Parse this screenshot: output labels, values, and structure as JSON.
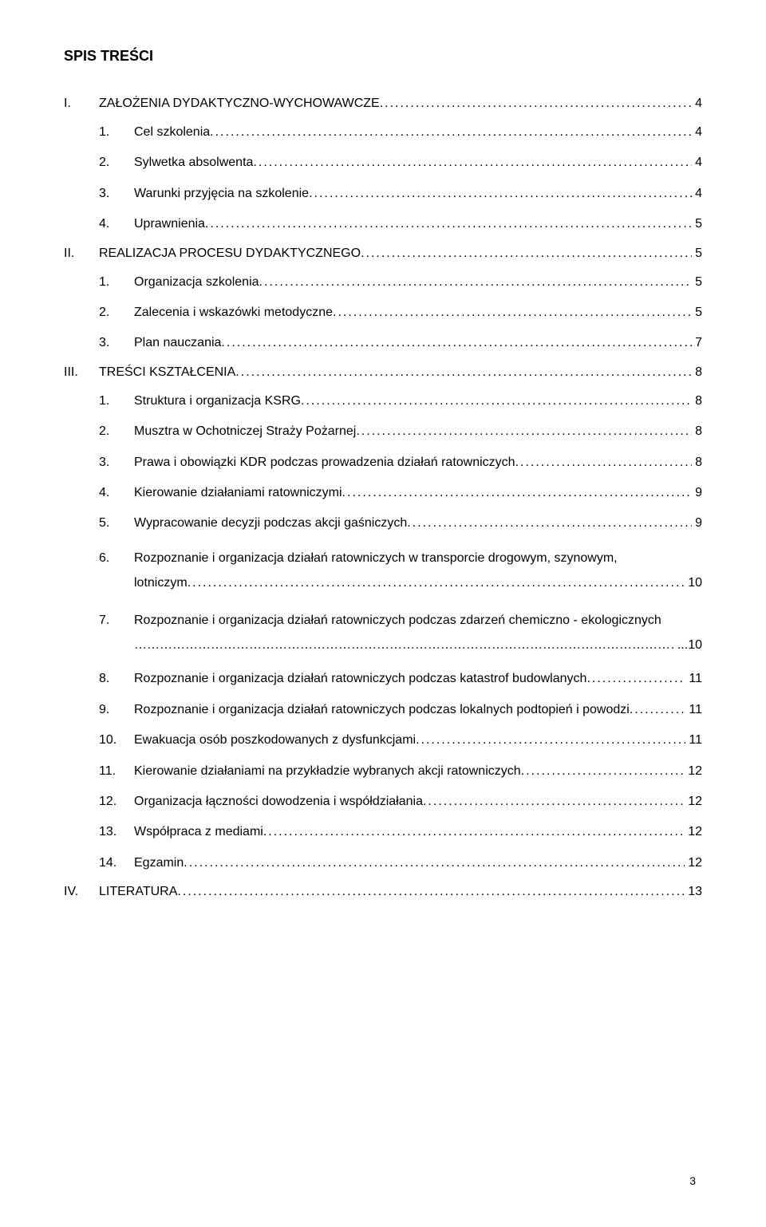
{
  "title": "SPIS TREŚCI",
  "page_number": "3",
  "dots_fill": "..................................................................................................................................................................................................",
  "ellipsis_fill": "……………………………………………………………………………………………………………………",
  "sections": [
    {
      "num": "I.",
      "title": "ZAŁOŻENIA DYDAKTYCZNO-WYCHOWAWCZE",
      "page": "4",
      "items": [
        {
          "num": "1.",
          "title": "Cel szkolenia",
          "page": "4"
        },
        {
          "num": "2.",
          "title": "Sylwetka absolwenta",
          "page": "4"
        },
        {
          "num": "3.",
          "title": "Warunki przyjęcia na szkolenie",
          "page": "4"
        },
        {
          "num": "4.",
          "title": "Uprawnienia",
          "page": "5"
        }
      ]
    },
    {
      "num": "II.",
      "title": "REALIZACJA PROCESU DYDAKTYCZNEGO",
      "page": "5",
      "items": [
        {
          "num": "1.",
          "title": "Organizacja szkolenia",
          "page": "5"
        },
        {
          "num": "2.",
          "title": "Zalecenia i wskazówki metodyczne",
          "page": "5"
        },
        {
          "num": "3.",
          "title": "Plan nauczania",
          "page": "7"
        }
      ]
    },
    {
      "num": "III.",
      "title": "TREŚCI KSZTAŁCENIA",
      "page": "8",
      "items": [
        {
          "num": "1.",
          "title": "Struktura i organizacja KSRG",
          "page": "8"
        },
        {
          "num": "2.",
          "title": "Musztra w Ochotniczej Straży Pożarnej",
          "page": "8"
        },
        {
          "num": "3.",
          "title": "Prawa i obowiązki KDR podczas prowadzenia działań ratowniczych",
          "page": "8"
        },
        {
          "num": "4.",
          "title": "Kierowanie działaniami ratowniczymi",
          "page": "9"
        },
        {
          "num": "5.",
          "title": "Wypracowanie decyzji podczas akcji gaśniczych",
          "page": "9"
        },
        {
          "num": "6.",
          "title_line1": "Rozpoznanie i organizacja działań ratowniczych w transporcie drogowym, szynowym,",
          "title_line2": "lotniczym",
          "page": "10",
          "multi": true
        },
        {
          "num": "7.",
          "title_line1": "Rozpoznanie i organizacja działań ratowniczych podczas zdarzeń chemiczno - ekologicznych",
          "page": "10",
          "ellipsis": true
        },
        {
          "num": "8.",
          "title": "Rozpoznanie i organizacja działań ratowniczych podczas katastrof  budowlanych",
          "page": "11"
        },
        {
          "num": "9.",
          "title": "Rozpoznanie i organizacja działań ratowniczych podczas lokalnych podtopień i powodzi",
          "page": "11"
        },
        {
          "num": "10.",
          "title": "Ewakuacja osób poszkodowanych z dysfunkcjami",
          "page": "11"
        },
        {
          "num": "11.",
          "title": "Kierowanie działaniami na przykładzie wybranych akcji ratowniczych",
          "page": "12"
        },
        {
          "num": "12.",
          "title": "Organizacja łączności dowodzenia i współdziałania",
          "page": "12"
        },
        {
          "num": "13.",
          "title": "Współpraca z mediami",
          "page": "12"
        },
        {
          "num": "14.",
          "title": "Egzamin",
          "page": "12"
        }
      ]
    },
    {
      "num": "IV.",
      "title": "LITERATURA",
      "page": "13",
      "items": []
    }
  ]
}
